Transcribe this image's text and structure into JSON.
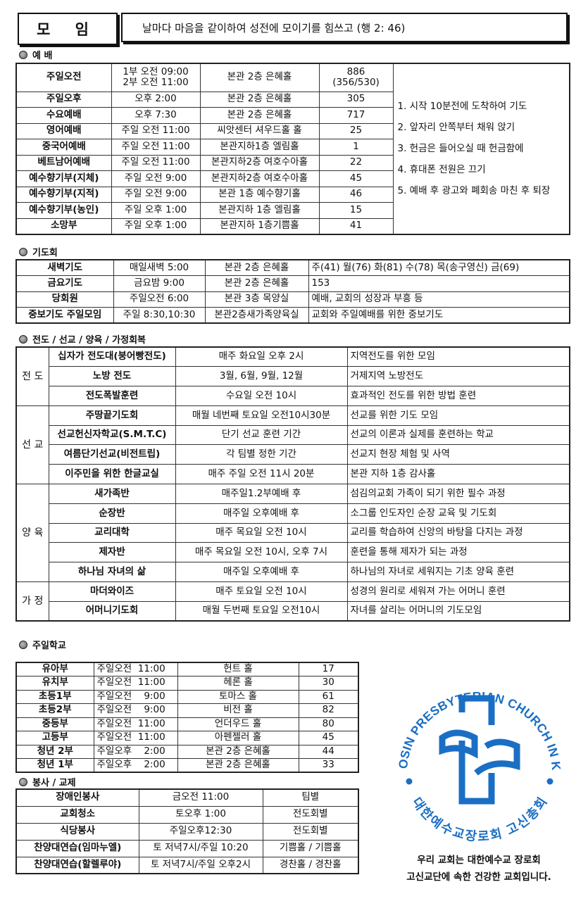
{
  "header": {
    "title": "모 임",
    "motto": "날마다 마음을 같이하여 성전에 모이기를 힘쓰고 (행 2: 46)"
  },
  "worship": {
    "label": "예 배",
    "rows": [
      [
        "주일오전",
        "1부 오전 09:00\n2부 오전 11:00",
        "본관 2층 은혜홀",
        "886\n(356/530)"
      ],
      [
        "주일오후",
        "오후 2:00",
        "본관 2층 은혜홀",
        "305"
      ],
      [
        "수요예배",
        "오후 7:30",
        "본관 2층 은혜홀",
        "717"
      ],
      [
        "영어예배",
        "주일 오전 11:00",
        "씨앗센터 셔우드홀 홀",
        "25"
      ],
      [
        "중국어예배",
        "주일 오전 11:00",
        "본관지하1층 엘림홀",
        "1"
      ],
      [
        "베트남어예배",
        "주일 오전 11:00",
        "본관지하2층 여호수아홀",
        "22"
      ],
      [
        "예수향기부(지체)",
        "주일 오전  9:00",
        "본관지하2층 여호수아홀",
        "45"
      ],
      [
        "예수향기부(지적)",
        "주일 오전  9:00",
        "본관 1층 예수향기홀",
        "46"
      ],
      [
        "예수향기부(농인)",
        "주일 오후  1:00",
        "본관지하 1층 엘림홀",
        "15"
      ],
      [
        "소망부",
        "주일 오후  1:00",
        "본관지하 1층기쁨홀",
        "41"
      ]
    ],
    "notes": [
      "1. 시작 10분전에 도착하여 기도",
      "2. 앞자리 안쪽부터 채워 앉기",
      "3. 헌금은 들어오실 때 헌금함에",
      "4. 휴대폰 전원은 끄기",
      "5. 예배 후 광고와 폐회송 마친 후 퇴장"
    ]
  },
  "prayer": {
    "label": "기도회",
    "rows": [
      [
        "새벽기도",
        "매일새벽 5:00",
        "본관 2층 은혜홀",
        "주(41) 월(76) 화(81) 수(78) 목(송구영신) 금(69)"
      ],
      [
        "금요기도",
        "금요밤 9:00",
        "본관 2층 은혜홀",
        "153"
      ],
      [
        "당회원",
        "주일오전 6:00",
        "본관 3층 목양실",
        "예배, 교회의 성장과 부흥 등"
      ],
      [
        "중보기도 주일모임",
        "주일 8:30,10:30",
        "본관2층새가족양육실",
        "교회와 주일예배를 위한 중보기도"
      ]
    ]
  },
  "ministry": {
    "label": "전도 / 선교 / 양육 / 가정회복",
    "groups": [
      {
        "name": "전 도",
        "rows": [
          [
            "십자가 전도대(붕어빵전도)",
            "매주 화요일 오후 2시",
            "지역전도를 위한 모임"
          ],
          [
            "노방 전도",
            "3월, 6월, 9월, 12월",
            "거제지역 노방전도"
          ],
          [
            "전도폭발훈련",
            "수요일 오전 10시",
            "효과적인 전도를 위한 방법 훈련"
          ]
        ]
      },
      {
        "name": "선 교",
        "rows": [
          [
            "주땅끝기도회",
            "매월 네번째 토요일 오전10시30분",
            "선교를 위한 기도 모임"
          ],
          [
            "선교헌신자학교(S.M.T.C)",
            "단기 선교 훈련 기간",
            "선교의 이론과 실제를 훈련하는 학교"
          ],
          [
            "여름단기선교(비전트립)",
            "각 팀별 정한 기간",
            "선교지 현장 체험 및 사역"
          ],
          [
            "이주민을 위한 한글교실",
            "매주 주일 오전 11시 20분",
            "본관 지하 1층 감사홀"
          ]
        ]
      },
      {
        "name": "양 육",
        "rows": [
          [
            "새가족반",
            "매주일1.2부예배 후",
            "섬김의교회 가족이 되기 위한 필수 과정"
          ],
          [
            "순장반",
            "매주일 오후예배 후",
            "소그룹 인도자인 순장 교육 및 기도회"
          ],
          [
            "교리대학",
            "매주 목요일 오전 10시",
            "교리를 학습하여 신앙의 바탕을 다지는 과정"
          ],
          [
            "제자반",
            "매주 목요일 오전 10시, 오후 7시",
            "훈련을 통해 제자가 되는 과정"
          ],
          [
            "하나님 자녀의 삶",
            "매주일 오후예배 후",
            "하나님의 자녀로 세워지는 기초 양육 훈련"
          ]
        ]
      },
      {
        "name": "가 정",
        "rows": [
          [
            "마더와이즈",
            "매주 토요일 오전 10시",
            "성경의 원리로 세워져 가는 어머니 훈련"
          ],
          [
            "어머니기도회",
            "매월 두번째 토요일 오전10시",
            "자녀를 살리는 어머니의 기도모임"
          ]
        ]
      }
    ]
  },
  "sunday_school": {
    "label": "주일학교",
    "rows": [
      [
        "유아부",
        "주일오전  11:00",
        "헌트 홀",
        "17"
      ],
      [
        "유치부",
        "주일오전  11:00",
        "헤론 홀",
        "30"
      ],
      [
        "초등1부",
        "주일오전    9:00",
        "토마스 홀",
        "61"
      ],
      [
        "초등2부",
        "주일오전    9:00",
        "비전 홀",
        "82"
      ],
      [
        "중등부",
        "주일오전  11:00",
        "언더우드 홀",
        "80"
      ],
      [
        "고등부",
        "주일오전  11:00",
        "아펜젤러 홀",
        "45"
      ],
      [
        "청년 2부",
        "주일오후    2:00",
        "본관 2층 은혜홀",
        "44"
      ],
      [
        "청년 1부",
        "주일오후    2:00",
        "본관 2층 은혜홀",
        "33"
      ]
    ]
  },
  "service": {
    "label": "봉사 / 교제",
    "rows": [
      [
        "장애인봉사",
        "금오전 11:00",
        "팀별"
      ],
      [
        "교회청소",
        "토오후 1:00",
        "전도회별"
      ],
      [
        "식당봉사",
        "주일오후12:30",
        "전도회별"
      ],
      [
        "찬양대연습(임마누엘)",
        "토 저녁7시/주일 10:20",
        "기쁨홀 / 기쁨홀"
      ],
      [
        "찬양대연습(할렐루야)",
        "토 저녁7시/주일 오후2시",
        "경찬홀 / 경찬홀"
      ]
    ]
  },
  "logo": {
    "outer_text": "THE KOSIN PRESBYTERIAN CHURCH IN KOREA",
    "inner_text": "대한예수교장로회 고신총회",
    "color": "#1a6fc4"
  },
  "caption": [
    "우리 교회는 대한예수교 장로회",
    "고신교단에 속한 건강한 교회입니다."
  ]
}
